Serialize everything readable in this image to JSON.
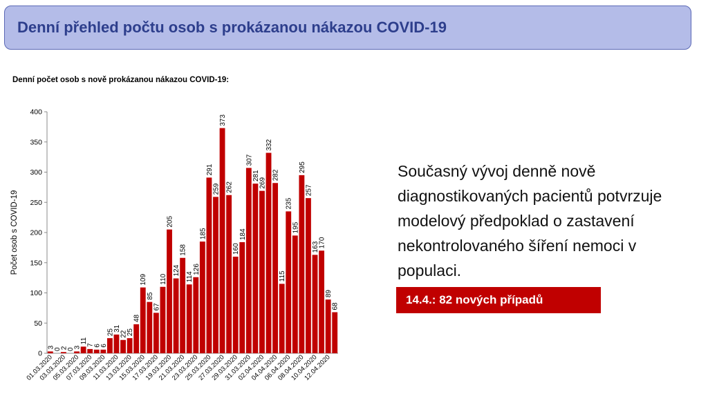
{
  "header": {
    "title": "Denní přehled počtu osob s prokázanou nákazou COVID-19"
  },
  "chart_data": {
    "type": "bar",
    "title": "Denní počet osob s nově prokázanou nákazou COVID-19:",
    "xlabel": "",
    "ylabel": "Počet osob s COVID-19",
    "ylim": [
      0,
      400
    ],
    "yticks": [
      0,
      50,
      100,
      150,
      200,
      250,
      300,
      350,
      400
    ],
    "categories": [
      "01.03.2020",
      "02.03.2020",
      "03.03.2020",
      "04.03.2020",
      "05.03.2020",
      "06.03.2020",
      "07.03.2020",
      "08.03.2020",
      "09.03.2020",
      "10.03.2020",
      "11.03.2020",
      "12.03.2020",
      "13.03.2020",
      "14.03.2020",
      "15.03.2020",
      "16.03.2020",
      "17.03.2020",
      "18.03.2020",
      "19.03.2020",
      "20.03.2020",
      "21.03.2020",
      "22.03.2020",
      "23.03.2020",
      "24.03.2020",
      "25.03.2020",
      "26.03.2020",
      "27.03.2020",
      "28.03.2020",
      "29.03.2020",
      "30.03.2020",
      "31.03.2020",
      "01.04.2020",
      "02.04.2020",
      "03.04.2020",
      "04.04.2020",
      "05.04.2020",
      "06.04.2020",
      "07.04.2020",
      "08.04.2020",
      "09.04.2020",
      "10.04.2020",
      "11.04.2020",
      "12.04.2020",
      "13.04.2020"
    ],
    "tick_labels": [
      "01.03.2020",
      "03.03.2020",
      "05.03.2020",
      "07.03.2020",
      "09.03.2020",
      "11.03.2020",
      "13.03.2020",
      "15.03.2020",
      "17.03.2020",
      "19.03.2020",
      "21.03.2020",
      "23.03.2020",
      "25.03.2020",
      "27.03.2020",
      "29.03.2020",
      "31.03.2020",
      "02.04.2020",
      "04.04.2020",
      "06.04.2020",
      "08.04.2020",
      "10.04.2020",
      "12.04.2020"
    ],
    "series": [
      {
        "values": [
          3,
          0,
          2,
          0,
          3,
          11,
          7,
          6,
          6,
          25,
          31,
          22,
          25,
          48,
          109,
          85,
          67,
          110,
          205,
          124,
          158,
          114,
          126,
          185,
          291,
          259,
          373,
          262,
          160,
          184,
          307,
          281,
          269,
          332,
          282,
          115,
          235,
          195,
          295,
          257,
          163,
          170,
          89,
          68
        ],
        "color": "#c00000"
      }
    ],
    "grid": false,
    "legend": "none"
  },
  "description": "Současný vývoj denně nově diagnostikovaných pacientů potvrzuje modelový předpoklad o zastavení nekontrolovaného šíření nemoci v populaci.",
  "callout": {
    "text": "14.4.: 82 nových případů",
    "color": "#c00000"
  }
}
